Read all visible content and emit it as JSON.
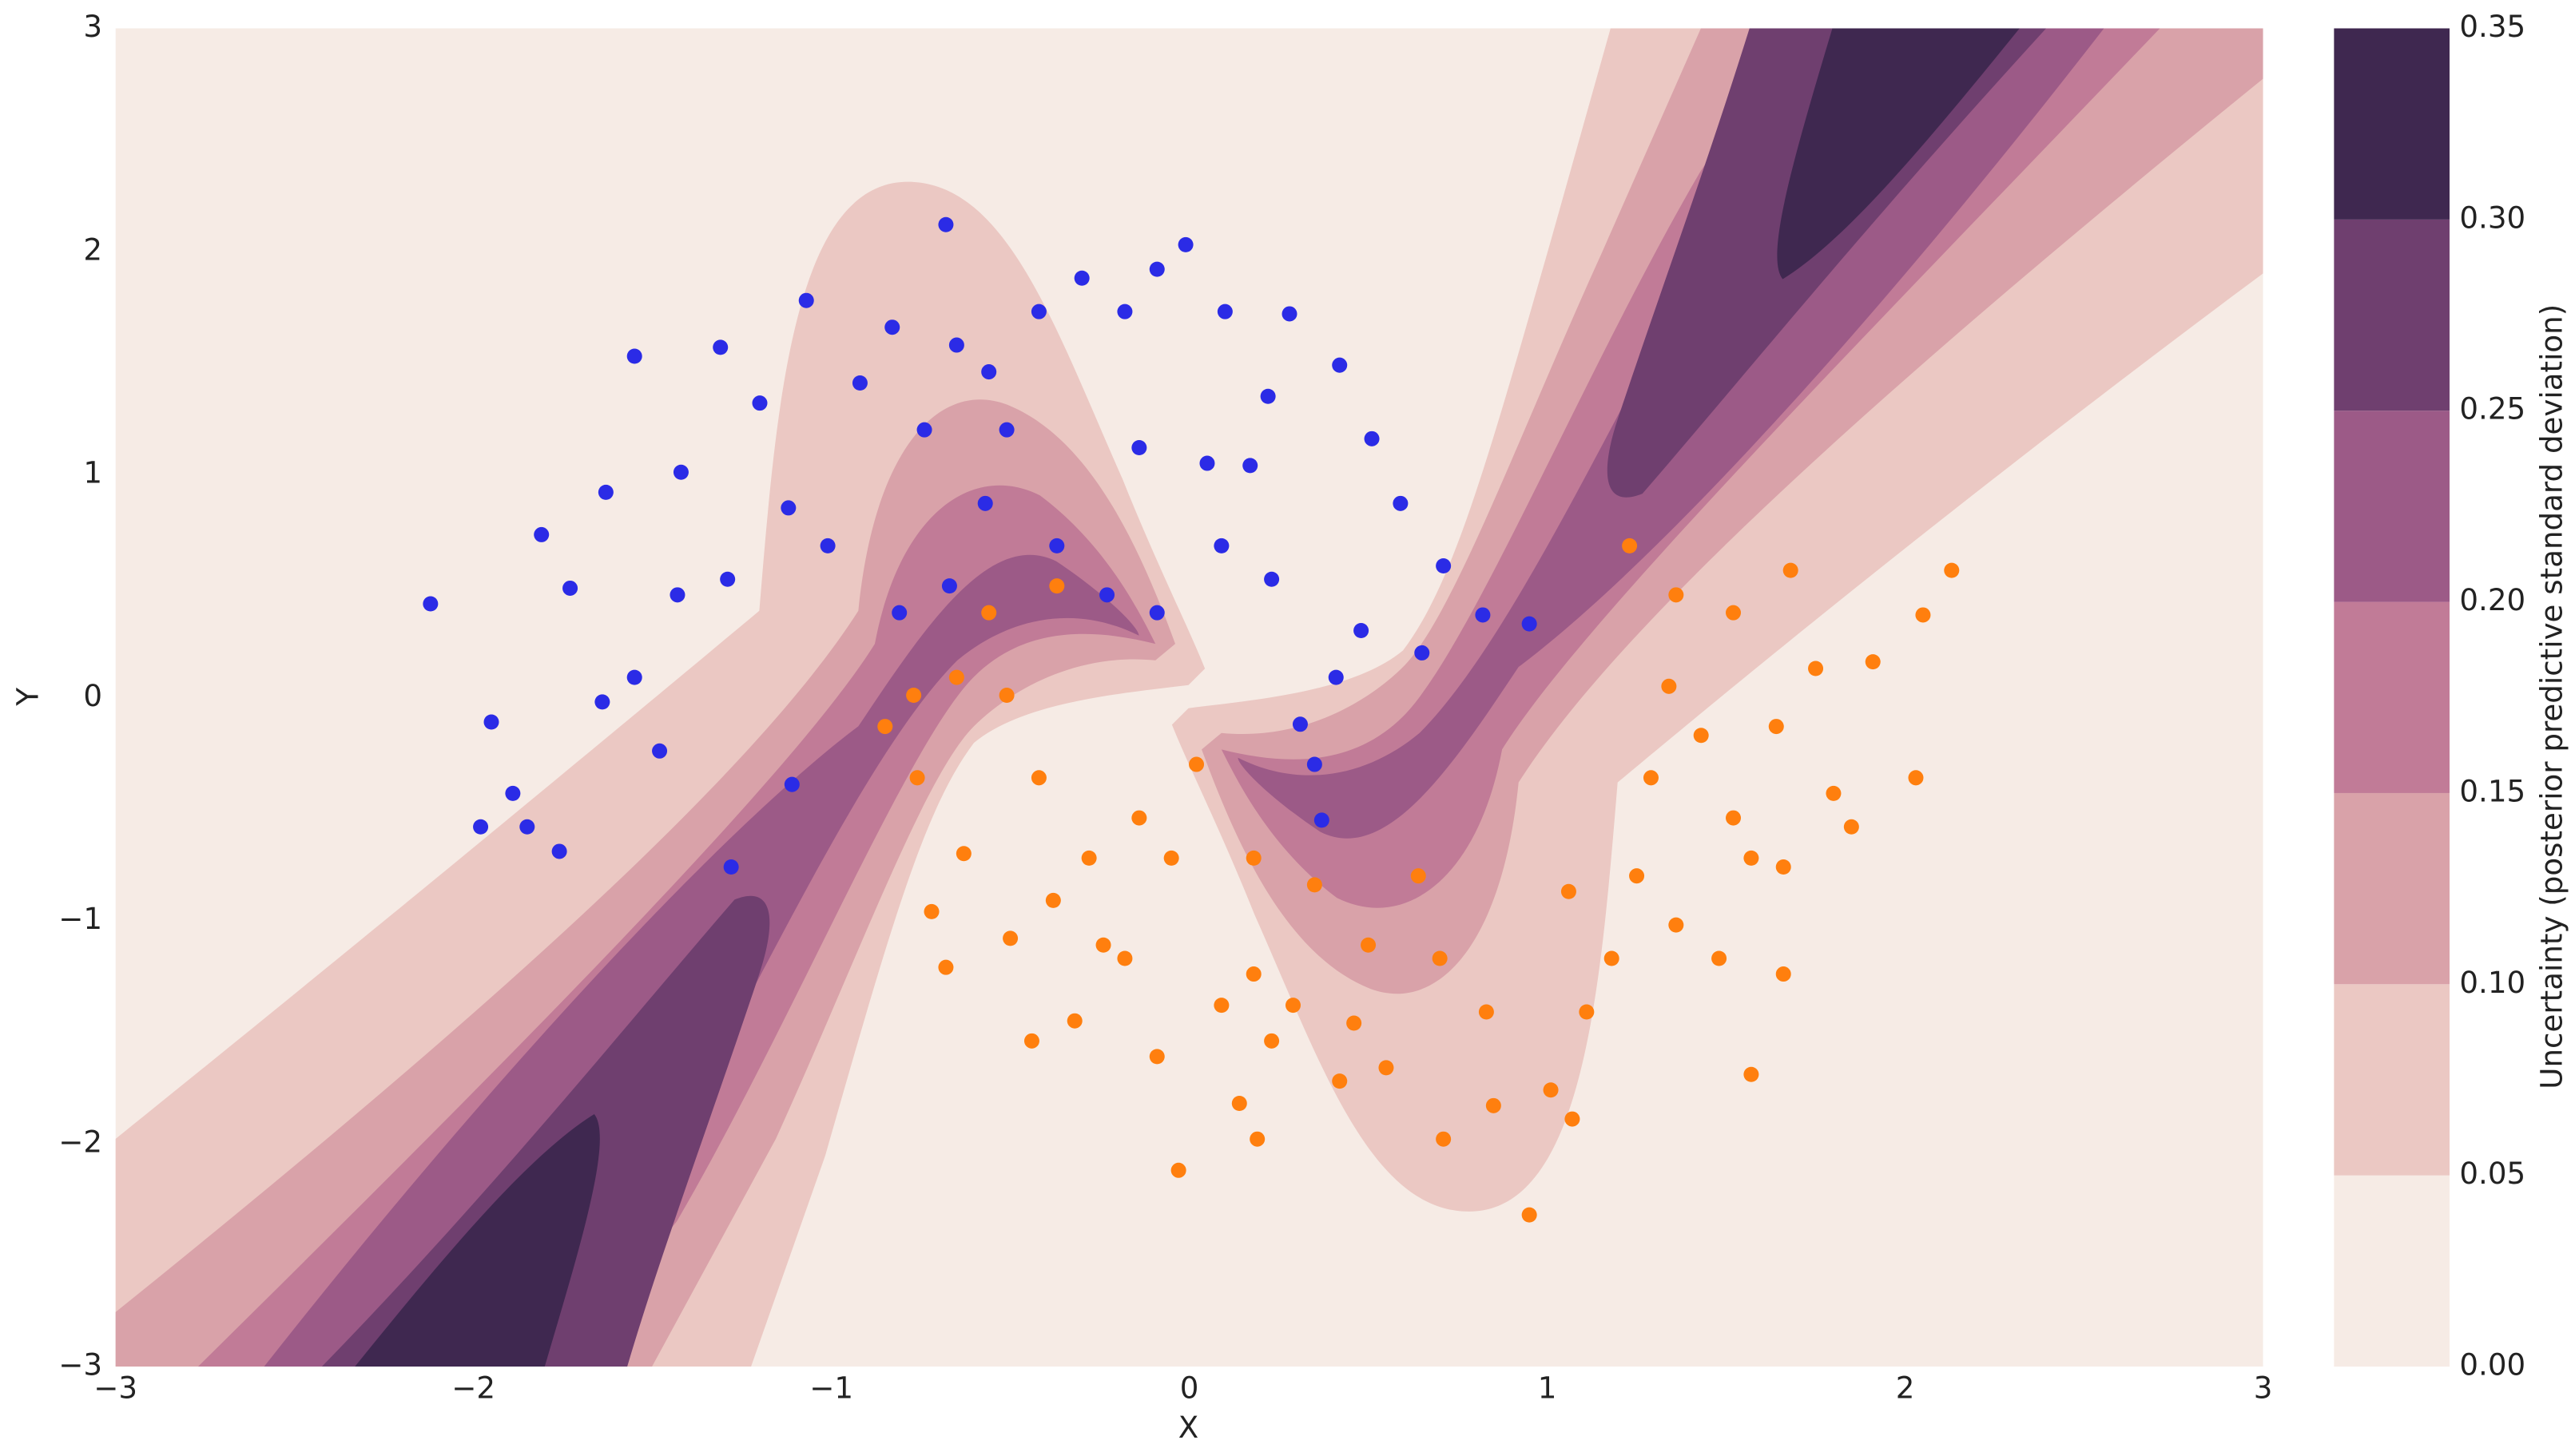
{
  "chart_data": {
    "type": "contour-scatter",
    "xlabel": "X",
    "ylabel": "Y",
    "xlim": [
      -3,
      3
    ],
    "ylim": [
      -3,
      3
    ],
    "xticks": [
      {
        "value": -3,
        "label": "−3"
      },
      {
        "value": -2,
        "label": "−2"
      },
      {
        "value": -1,
        "label": "−1"
      },
      0,
      1,
      2,
      3
    ],
    "yticks": [
      {
        "value": -3,
        "label": "−3"
      },
      {
        "value": -2,
        "label": "−2"
      },
      {
        "value": -1,
        "label": "−1"
      },
      0,
      1,
      2,
      3
    ],
    "colorbar": {
      "label": "Uncertainty (posterior predictive standard deviation)",
      "lim": [
        0,
        0.35
      ],
      "ticks": [
        {
          "value": 0,
          "label": "0.00"
        },
        {
          "value": 0.05,
          "label": "0.05"
        },
        {
          "value": 0.1,
          "label": "0.10"
        },
        {
          "value": 0.15,
          "label": "0.15"
        },
        {
          "value": 0.2,
          "label": "0.20"
        },
        {
          "value": 0.25,
          "label": "0.25"
        },
        {
          "value": 0.3,
          "label": "0.30"
        },
        {
          "value": 0.35,
          "label": "0.35"
        }
      ],
      "colors": [
        "#f6ebe5",
        "#ebc8c3",
        "#d9a2a9",
        "#c17b97",
        "#9c5a87",
        "#6f3f6f",
        "#3f2850"
      ]
    },
    "series": [
      {
        "color": "#2b2be6",
        "x": [
          -2.12,
          -1.95,
          -1.89,
          -1.85,
          -1.81,
          -1.73,
          -1.63,
          -1.55,
          -1.42,
          -1.31,
          -1.2,
          -1.12,
          -1.07,
          -0.92,
          -0.83,
          -0.68,
          -0.65,
          -0.56,
          -0.42,
          -0.3,
          -0.18,
          -0.09,
          -0.01,
          0.1,
          0.17,
          0.22,
          0.28,
          0.42,
          0.51,
          0.59,
          0.71,
          0.82,
          0.95,
          0.65,
          0.48,
          0.41,
          0.31,
          0.35,
          0.37,
          0.23,
          0.09,
          -0.09,
          -0.23,
          -0.37,
          -0.57,
          -0.67,
          -0.81,
          -1.01,
          -1.29,
          -1.43,
          -1.55,
          -1.48,
          -1.64,
          -1.76,
          -1.11,
          -1.28,
          -1.98,
          -0.74,
          -0.51,
          -0.14,
          0.05
        ],
        "y": [
          0.42,
          -0.11,
          -0.43,
          -0.58,
          0.73,
          0.49,
          0.92,
          1.53,
          1.01,
          1.57,
          1.32,
          0.85,
          1.78,
          1.41,
          1.66,
          2.12,
          1.58,
          1.46,
          1.73,
          1.88,
          1.73,
          1.92,
          2.03,
          1.73,
          1.04,
          1.35,
          1.72,
          1.49,
          1.16,
          0.87,
          0.59,
          0.37,
          0.33,
          0.2,
          0.3,
          0.09,
          -0.12,
          -0.3,
          -0.55,
          0.53,
          0.68,
          0.38,
          0.46,
          0.68,
          0.87,
          0.5,
          0.38,
          0.68,
          0.53,
          0.46,
          0.09,
          -0.24,
          -0.02,
          -0.69,
          -0.39,
          -0.76,
          -0.58,
          1.2,
          1.2,
          1.12,
          1.05
        ]
      },
      {
        "color": "#ff7f0e",
        "x": [
          -0.85,
          -0.77,
          -0.65,
          -0.56,
          -0.51,
          -0.37,
          -0.72,
          -0.68,
          -0.63,
          -0.5,
          -0.42,
          -0.38,
          -0.32,
          -0.24,
          -0.14,
          -0.05,
          -0.03,
          0.02,
          0.09,
          0.14,
          0.19,
          0.18,
          0.29,
          0.35,
          0.42,
          0.5,
          0.55,
          0.64,
          0.7,
          0.83,
          0.95,
          1.01,
          1.07,
          1.11,
          1.18,
          1.25,
          1.29,
          1.34,
          1.43,
          1.52,
          1.64,
          1.66,
          1.75,
          1.8,
          1.91,
          2.03,
          2.13,
          2.05,
          1.85,
          1.57,
          1.48,
          1.36,
          1.06,
          0.85,
          0.71,
          0.46,
          0.23,
          0.18,
          1.36,
          1.52,
          1.68,
          1.23,
          1.57,
          1.66,
          -0.09,
          -0.18,
          -0.28,
          -0.44,
          -0.76
        ],
        "y": [
          -0.13,
          0.01,
          0.09,
          0.38,
          0.01,
          0.5,
          -0.96,
          -1.21,
          -0.7,
          -1.08,
          -0.36,
          -0.91,
          -1.45,
          -1.11,
          -0.54,
          -0.72,
          -2.12,
          -0.3,
          -1.38,
          -1.82,
          -1.98,
          -1.24,
          -1.38,
          -0.84,
          -1.72,
          -1.11,
          -1.66,
          -0.8,
          -1.17,
          -1.41,
          -2.32,
          -1.76,
          -1.89,
          -1.41,
          -1.17,
          -0.8,
          -0.36,
          0.05,
          -0.17,
          -0.54,
          -0.13,
          -0.76,
          0.13,
          -0.43,
          0.16,
          -0.36,
          0.57,
          0.37,
          -0.58,
          -0.72,
          -1.17,
          -1.02,
          -0.87,
          -1.83,
          -1.98,
          -1.46,
          -1.54,
          -0.72,
          0.46,
          0.38,
          0.57,
          0.68,
          -1.69,
          -1.24,
          -1.61,
          -1.17,
          -0.72,
          -1.54,
          -0.36
        ]
      }
    ]
  }
}
